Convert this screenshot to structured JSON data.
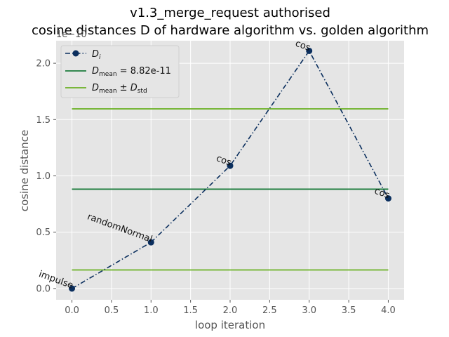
{
  "chart_data": {
    "type": "line",
    "title_line1": "v1.3_merge_request authorised",
    "title_line2": "cosine distances D of hardware algorithm vs. golden algorithm",
    "xlabel": "loop iteration",
    "ylabel": "cosine distance",
    "y_offset_label": "1e−10",
    "xlim": [
      -0.2,
      4.2
    ],
    "ylim": [
      -0.1,
      2.2
    ],
    "x_ticks": [
      0.0,
      0.5,
      1.0,
      1.5,
      2.0,
      2.5,
      3.0,
      3.5,
      4.0
    ],
    "x_tick_labels": [
      "0.0",
      "0.5",
      "1.0",
      "1.5",
      "2.0",
      "2.5",
      "3.0",
      "3.5",
      "4.0"
    ],
    "y_ticks": [
      0.0,
      0.5,
      1.0,
      1.5,
      2.0
    ],
    "y_tick_labels": [
      "0.0",
      "0.5",
      "1.0",
      "1.5",
      "2.0"
    ],
    "grid": true,
    "legend_position": "top-left",
    "series": [
      {
        "name": "D_i",
        "style": "dash-dot with circle markers",
        "color": "#0b2f5e",
        "x": [
          0,
          1,
          2,
          3,
          4
        ],
        "y": [
          0.0,
          0.41,
          1.09,
          2.11,
          0.8
        ],
        "point_labels": [
          "impulse",
          "randomNormal",
          "cos",
          "cos",
          "cos"
        ]
      }
    ],
    "reference_lines": [
      {
        "name": "D_mean = 8.82e-11",
        "y": 0.882,
        "color": "#1a7a3a"
      },
      {
        "name": "D_mean ± D_std",
        "y_upper": 1.595,
        "y_lower": 0.165,
        "color": "#6ab023"
      }
    ],
    "legend": {
      "items": [
        {
          "symbol": "D",
          "subscript": "i"
        },
        {
          "symbol": "D",
          "subscript": "mean",
          "suffix": " = 8.82e-11"
        },
        {
          "symbol": "D",
          "subscript": "mean",
          "suffix": " ± ",
          "symbol2": "D",
          "subscript2": "std"
        }
      ]
    }
  }
}
